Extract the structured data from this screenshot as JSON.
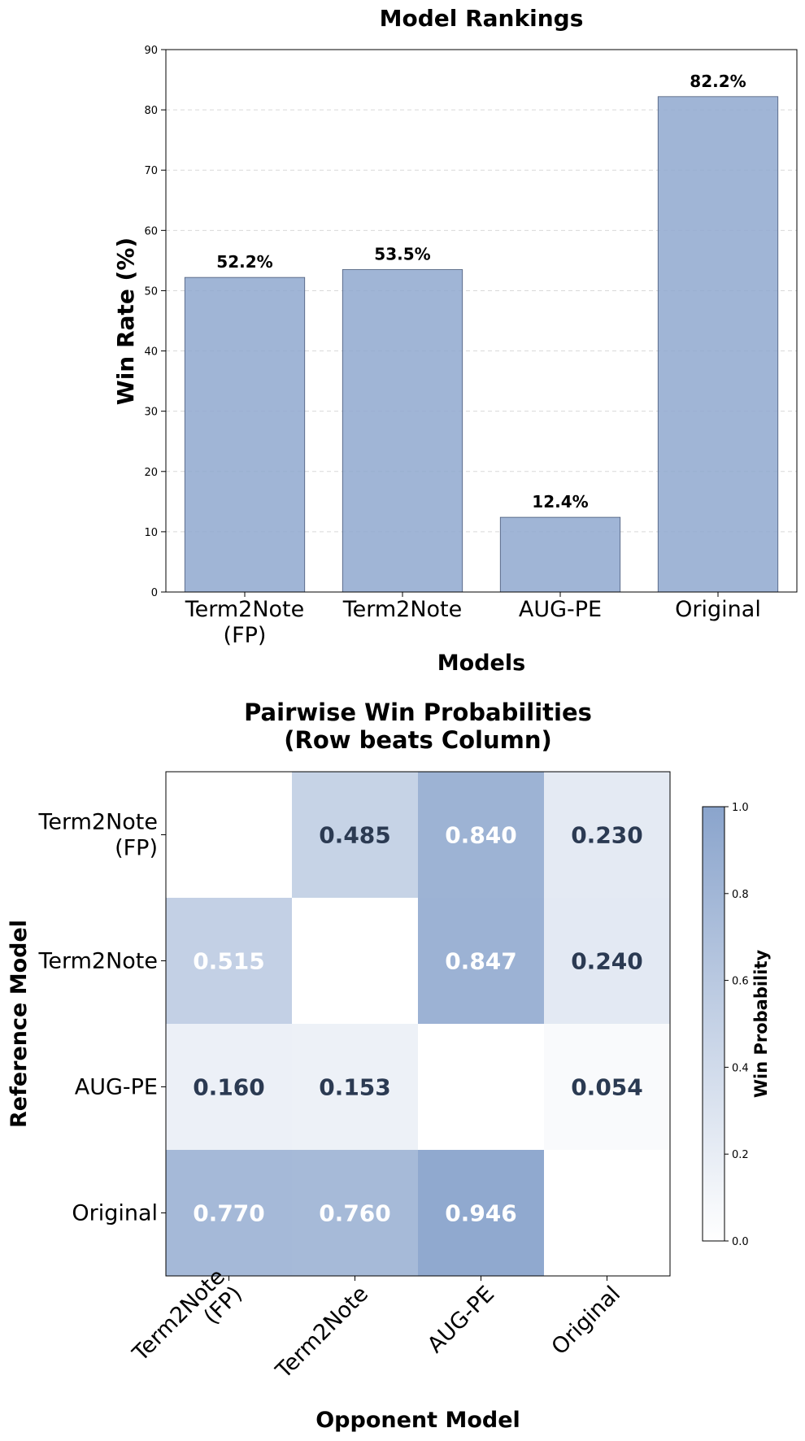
{
  "chart_data": [
    {
      "type": "bar",
      "title": "Model Rankings",
      "xlabel": "Models",
      "ylabel": "Win Rate (%)",
      "categories": [
        "Term2Note\n(FP)",
        "Term2Note",
        "AUG-PE",
        "Original"
      ],
      "values": [
        52.2,
        53.5,
        12.4,
        82.2
      ],
      "value_labels": [
        "52.2%",
        "53.5%",
        "12.4%",
        "82.2%"
      ],
      "ylim": [
        0,
        90
      ],
      "yticks": [
        0,
        10,
        20,
        30,
        40,
        50,
        60,
        70,
        80,
        90
      ],
      "grid": "horizontal dashed",
      "bar_color": "#8fa8cf"
    },
    {
      "type": "heatmap",
      "title": "Pairwise Win Probabilities\n(Row beats Column)",
      "xlabel": "Opponent Model",
      "ylabel": "Reference Model",
      "rows": [
        "Term2Note\n(FP)",
        "Term2Note",
        "AUG-PE",
        "Original"
      ],
      "columns": [
        "Term2Note\n(FP)",
        "Term2Note",
        "AUG-PE",
        "Original"
      ],
      "values": [
        [
          null,
          0.485,
          0.84,
          0.23
        ],
        [
          0.515,
          null,
          0.847,
          0.24
        ],
        [
          0.16,
          0.153,
          null,
          0.054
        ],
        [
          0.77,
          0.76,
          0.946,
          null
        ]
      ],
      "cell_labels": [
        [
          "",
          "0.485",
          "0.840",
          "0.230"
        ],
        [
          "0.515",
          "",
          "0.847",
          "0.240"
        ],
        [
          "0.160",
          "0.153",
          "",
          "0.054"
        ],
        [
          "0.770",
          "0.760",
          "0.946",
          ""
        ]
      ],
      "colorbar": {
        "label": "Win Probability",
        "range": [
          0,
          1
        ],
        "ticks": [
          "0.0",
          "0.2",
          "0.4",
          "0.6",
          "0.8",
          "1.0"
        ],
        "color_low": "#ffffff",
        "color_high": "#8aa4cc"
      },
      "text_dark": "#2b3a52",
      "text_light": "#ffffff"
    }
  ]
}
